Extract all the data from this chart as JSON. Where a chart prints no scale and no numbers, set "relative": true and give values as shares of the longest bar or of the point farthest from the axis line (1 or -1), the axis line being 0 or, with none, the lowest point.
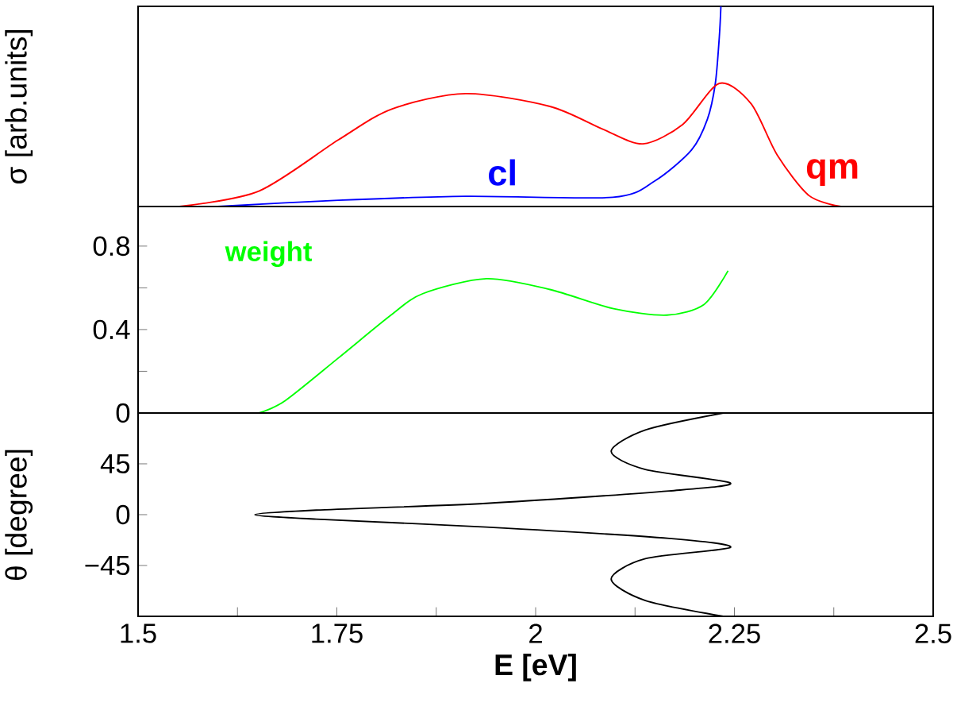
{
  "chart_data": [
    {
      "type": "line",
      "ylabel": "σ [arb.units]",
      "relative": true,
      "xlim": [
        1.5,
        2.5
      ],
      "tick_labels": false,
      "series": [
        {
          "name": "cl",
          "color": "#0000ff",
          "x": [
            1.6,
            1.752,
            1.912,
            2.097,
            2.15,
            2.196,
            2.216,
            2.226,
            2.231,
            2.233
          ],
          "values": [
            0,
            0.031,
            0.051,
            0.046,
            0.128,
            0.282,
            0.436,
            0.615,
            0.846,
            1.0
          ]
        },
        {
          "name": "qm",
          "color": "#ff0000",
          "x": [
            1.552,
            1.652,
            1.752,
            1.819,
            1.912,
            2.018,
            2.085,
            2.135,
            2.185,
            2.231,
            2.271,
            2.304,
            2.344,
            2.384
          ],
          "values": [
            0,
            0.077,
            0.333,
            0.487,
            0.564,
            0.5,
            0.385,
            0.313,
            0.41,
            0.615,
            0.513,
            0.256,
            0.054,
            0
          ]
        }
      ]
    },
    {
      "type": "line",
      "xlim": [
        1.5,
        2.5
      ],
      "ylim": [
        0,
        0.99
      ],
      "tick_labels": "y",
      "yticks": [
        0,
        {
          "value": 0.2,
          "label": null
        },
        0.4,
        {
          "value": 0.6,
          "label": null
        },
        0.8
      ],
      "series": [
        {
          "name": "weight",
          "color": "#00ff00",
          "x": [
            1.652,
            1.685,
            1.752,
            1.818,
            1.858,
            1.938,
            2.018,
            2.098,
            2.165,
            2.212,
            2.242
          ],
          "values": [
            0,
            0.059,
            0.264,
            0.469,
            0.572,
            0.644,
            0.592,
            0.5,
            0.469,
            0.521,
            0.682
          ]
        }
      ]
    },
    {
      "type": "line",
      "xlabel": "E [eV]",
      "ylabel": "θ [degree]",
      "xlim": [
        1.5,
        2.5
      ],
      "ylim": [
        -90,
        90
      ],
      "xticks": [
        1.5,
        {
          "value": 1.625,
          "label": null
        },
        1.75,
        {
          "value": 1.875,
          "label": null
        },
        2,
        {
          "value": 2.125,
          "label": null
        },
        2.25,
        {
          "value": 2.375,
          "label": null
        },
        2.5
      ],
      "yticks": [
        {
          "value": -45,
          "label": "−45"
        },
        0,
        45
      ],
      "series": [
        {
          "color": "#000000",
          "x": [
            2.236,
            2.138,
            2.095,
            2.138,
            2.245,
            2.168,
            1.938,
            1.724,
            1.647,
            1.724,
            1.938,
            2.168,
            2.245,
            2.138,
            2.095,
            2.138,
            2.236
          ],
          "values": [
            90,
            75,
            56,
            40,
            28,
            21,
            10,
            4,
            0,
            -4,
            -11,
            -21,
            -29,
            -39,
            -57,
            -76,
            -90
          ]
        }
      ]
    }
  ]
}
